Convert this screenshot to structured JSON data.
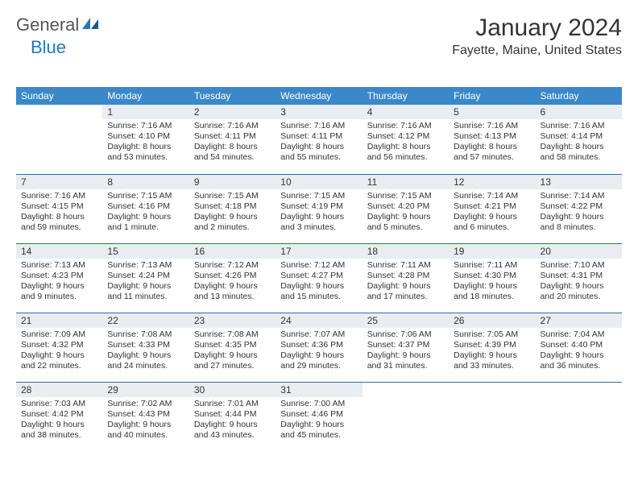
{
  "logo": {
    "general": "General",
    "blue": "Blue"
  },
  "title": {
    "month": "January 2024",
    "location": "Fayette, Maine, United States"
  },
  "colors": {
    "header_bg": "#3b88c8",
    "header_text": "#ffffff",
    "daynum_bg": "#e9edf1",
    "row_border": "#3b6a99",
    "logo_blue": "#2a77b8"
  },
  "dayHeaders": [
    "Sunday",
    "Monday",
    "Tuesday",
    "Wednesday",
    "Thursday",
    "Friday",
    "Saturday"
  ],
  "startOffset": 1,
  "days": [
    {
      "n": 1,
      "sr": "7:16 AM",
      "ss": "4:10 PM",
      "dl": "8 hours and 53 minutes."
    },
    {
      "n": 2,
      "sr": "7:16 AM",
      "ss": "4:11 PM",
      "dl": "8 hours and 54 minutes."
    },
    {
      "n": 3,
      "sr": "7:16 AM",
      "ss": "4:11 PM",
      "dl": "8 hours and 55 minutes."
    },
    {
      "n": 4,
      "sr": "7:16 AM",
      "ss": "4:12 PM",
      "dl": "8 hours and 56 minutes."
    },
    {
      "n": 5,
      "sr": "7:16 AM",
      "ss": "4:13 PM",
      "dl": "8 hours and 57 minutes."
    },
    {
      "n": 6,
      "sr": "7:16 AM",
      "ss": "4:14 PM",
      "dl": "8 hours and 58 minutes."
    },
    {
      "n": 7,
      "sr": "7:16 AM",
      "ss": "4:15 PM",
      "dl": "8 hours and 59 minutes."
    },
    {
      "n": 8,
      "sr": "7:15 AM",
      "ss": "4:16 PM",
      "dl": "9 hours and 1 minute."
    },
    {
      "n": 9,
      "sr": "7:15 AM",
      "ss": "4:18 PM",
      "dl": "9 hours and 2 minutes."
    },
    {
      "n": 10,
      "sr": "7:15 AM",
      "ss": "4:19 PM",
      "dl": "9 hours and 3 minutes."
    },
    {
      "n": 11,
      "sr": "7:15 AM",
      "ss": "4:20 PM",
      "dl": "9 hours and 5 minutes."
    },
    {
      "n": 12,
      "sr": "7:14 AM",
      "ss": "4:21 PM",
      "dl": "9 hours and 6 minutes."
    },
    {
      "n": 13,
      "sr": "7:14 AM",
      "ss": "4:22 PM",
      "dl": "9 hours and 8 minutes."
    },
    {
      "n": 14,
      "sr": "7:13 AM",
      "ss": "4:23 PM",
      "dl": "9 hours and 9 minutes."
    },
    {
      "n": 15,
      "sr": "7:13 AM",
      "ss": "4:24 PM",
      "dl": "9 hours and 11 minutes."
    },
    {
      "n": 16,
      "sr": "7:12 AM",
      "ss": "4:26 PM",
      "dl": "9 hours and 13 minutes."
    },
    {
      "n": 17,
      "sr": "7:12 AM",
      "ss": "4:27 PM",
      "dl": "9 hours and 15 minutes."
    },
    {
      "n": 18,
      "sr": "7:11 AM",
      "ss": "4:28 PM",
      "dl": "9 hours and 17 minutes."
    },
    {
      "n": 19,
      "sr": "7:11 AM",
      "ss": "4:30 PM",
      "dl": "9 hours and 18 minutes."
    },
    {
      "n": 20,
      "sr": "7:10 AM",
      "ss": "4:31 PM",
      "dl": "9 hours and 20 minutes."
    },
    {
      "n": 21,
      "sr": "7:09 AM",
      "ss": "4:32 PM",
      "dl": "9 hours and 22 minutes."
    },
    {
      "n": 22,
      "sr": "7:08 AM",
      "ss": "4:33 PM",
      "dl": "9 hours and 24 minutes."
    },
    {
      "n": 23,
      "sr": "7:08 AM",
      "ss": "4:35 PM",
      "dl": "9 hours and 27 minutes."
    },
    {
      "n": 24,
      "sr": "7:07 AM",
      "ss": "4:36 PM",
      "dl": "9 hours and 29 minutes."
    },
    {
      "n": 25,
      "sr": "7:06 AM",
      "ss": "4:37 PM",
      "dl": "9 hours and 31 minutes."
    },
    {
      "n": 26,
      "sr": "7:05 AM",
      "ss": "4:39 PM",
      "dl": "9 hours and 33 minutes."
    },
    {
      "n": 27,
      "sr": "7:04 AM",
      "ss": "4:40 PM",
      "dl": "9 hours and 36 minutes."
    },
    {
      "n": 28,
      "sr": "7:03 AM",
      "ss": "4:42 PM",
      "dl": "9 hours and 38 minutes."
    },
    {
      "n": 29,
      "sr": "7:02 AM",
      "ss": "4:43 PM",
      "dl": "9 hours and 40 minutes."
    },
    {
      "n": 30,
      "sr": "7:01 AM",
      "ss": "4:44 PM",
      "dl": "9 hours and 43 minutes."
    },
    {
      "n": 31,
      "sr": "7:00 AM",
      "ss": "4:46 PM",
      "dl": "9 hours and 45 minutes."
    }
  ],
  "labels": {
    "sunrise": "Sunrise:",
    "sunset": "Sunset:",
    "daylight": "Daylight:"
  }
}
